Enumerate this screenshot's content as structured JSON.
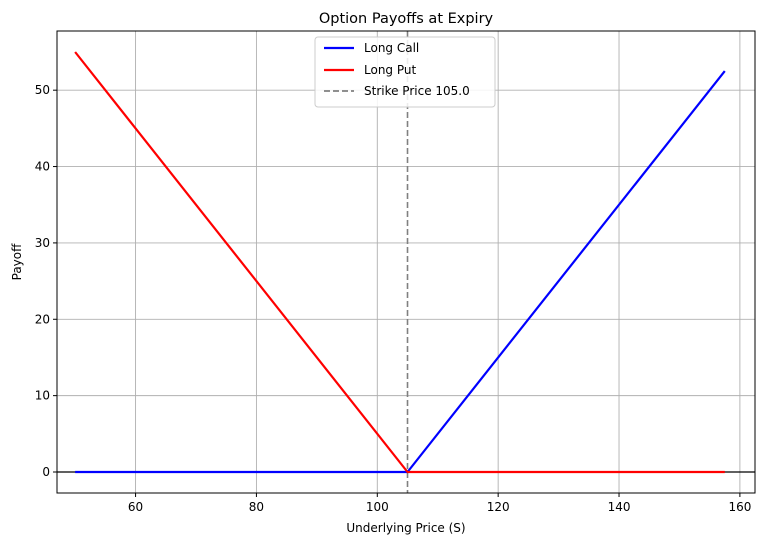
{
  "chart_data": {
    "type": "line",
    "title": "Option Payoffs at Expiry",
    "xlabel": "Underlying Price (S)",
    "ylabel": "Payoff",
    "xlim": [
      47,
      162.5
    ],
    "ylim": [
      -2.75,
      57.75
    ],
    "x_ticks": [
      60,
      80,
      100,
      120,
      140,
      160
    ],
    "y_ticks": [
      0,
      10,
      20,
      30,
      40,
      50
    ],
    "grid": true,
    "legend_position": "top-center",
    "strike": 105.0,
    "series": [
      {
        "name": "Long Call",
        "color": "#0000ff",
        "style": "solid",
        "x": [
          50,
          105,
          157.5
        ],
        "y": [
          0,
          0,
          52.5
        ]
      },
      {
        "name": "Long Put",
        "color": "#ff0000",
        "style": "solid",
        "x": [
          50,
          105,
          157.5
        ],
        "y": [
          55,
          0,
          0
        ]
      }
    ],
    "reference_lines": [
      {
        "name": "Strike Price 105.0",
        "orientation": "vertical",
        "value": 105.0,
        "color": "#808080",
        "style": "dashed"
      },
      {
        "orientation": "horizontal",
        "value": 0,
        "color": "#000000",
        "style": "solid"
      }
    ]
  }
}
